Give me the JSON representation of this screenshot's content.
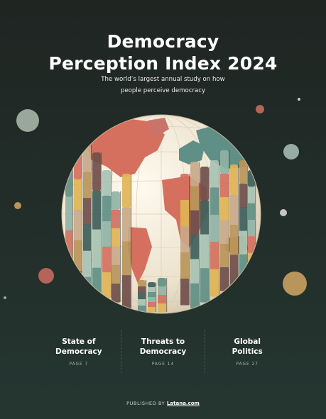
{
  "title_line1": "Democracy",
  "title_line2": "Perception Index 2024",
  "subtitle_line1": "The world’s largest annual study on how",
  "subtitle_line2": "people perceive democracy",
  "sections": [
    {
      "title_line1": "State of",
      "title_line2": "Democracy",
      "page": "PAGE 7"
    },
    {
      "title_line1": "Threats to",
      "title_line2": "Democracy",
      "page": "PAGE 14"
    },
    {
      "title_line1": "Global",
      "title_line2": "Politics",
      "page": "PAGE 27"
    }
  ],
  "published_prefix": "PUBLISHED BY",
  "published_by": "Latana.com",
  "colors": {
    "background": "#222b28",
    "globe": "#efe6d3",
    "teal": "#5f8f86",
    "coral": "#d5705e",
    "mustard": "#e0b456",
    "sand": "#c8a98a",
    "gold": "#b8955a"
  },
  "decorative_dot_colors": [
    "#9aa89b",
    "#b46458",
    "#d89d90",
    "#98aba4",
    "#c5c7c1",
    "#b8955a",
    "#a8956b",
    "#c9746a"
  ]
}
